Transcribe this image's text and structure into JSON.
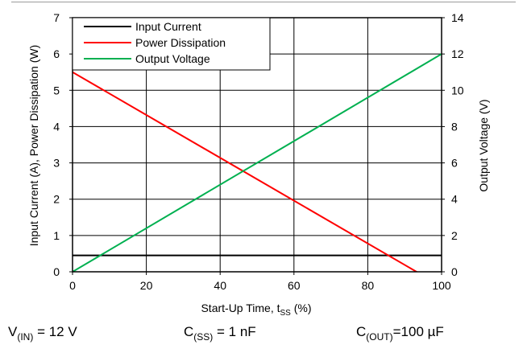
{
  "chart_data": {
    "type": "line",
    "xlabel": {
      "main": "Start-Up Time, t",
      "sub": "SS",
      "suffix": " (%)"
    },
    "ylabel_left": "Input  Current (A), Power Dissipation (W)",
    "ylabel_right": "Output Voltage  (V)",
    "xlim": [
      0,
      100
    ],
    "ylim_left": [
      0,
      7
    ],
    "ylim_right": [
      0,
      14
    ],
    "x_ticks": [
      "0",
      "20",
      "40",
      "60",
      "80",
      "100"
    ],
    "y_left_ticks": [
      "0",
      "1",
      "2",
      "3",
      "4",
      "5",
      "6",
      "7"
    ],
    "y_right_ticks": [
      "0",
      "2",
      "4",
      "6",
      "8",
      "10",
      "12",
      "14"
    ],
    "grid": true,
    "legend_position": "top-left",
    "series": [
      {
        "name": "Input Current",
        "color": "#000000",
        "axis": "left",
        "x": [
          0,
          100
        ],
        "y": [
          0.45,
          0.45
        ]
      },
      {
        "name": "Power Dissipation",
        "color": "#ff0000",
        "axis": "left",
        "x": [
          0,
          100
        ],
        "y": [
          5.5,
          -0.4
        ]
      },
      {
        "name": "Output Voltage",
        "color": "#00b050",
        "axis": "right",
        "x": [
          0,
          100
        ],
        "y": [
          0,
          12
        ]
      }
    ]
  },
  "conditions": [
    {
      "main": "V",
      "sub": "(IN)",
      "suffix": " = 12 V"
    },
    {
      "main": "C",
      "sub": "(SS)",
      "suffix": " = 1 nF"
    },
    {
      "main": "C",
      "sub": "(OUT)",
      "suffix": "=100 µF"
    }
  ]
}
